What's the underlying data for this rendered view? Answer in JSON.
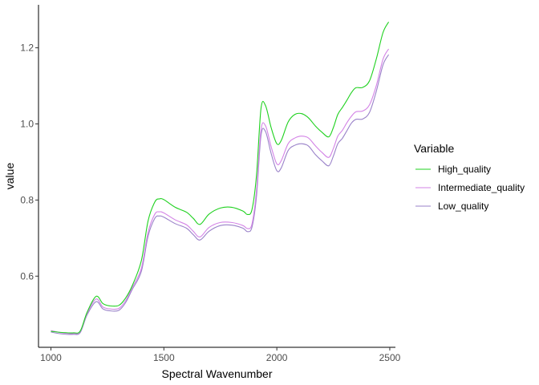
{
  "chart_data": {
    "type": "line",
    "xlabel": "Spectral Wavenumber",
    "ylabel": "value",
    "xlim": [
      945,
      2525
    ],
    "ylim": [
      0.413,
      1.313
    ],
    "x_ticks": [
      1000,
      1500,
      2000,
      2500
    ],
    "y_ticks": [
      0.6,
      0.8,
      1.0,
      1.2
    ],
    "x_tick_labels": [
      "1000",
      "1500",
      "2000",
      "2500"
    ],
    "y_tick_labels": [
      "0.6",
      "0.8",
      "1.0",
      "1.2"
    ],
    "grid": false,
    "legend": {
      "title": "Variable",
      "position": "right"
    },
    "x": [
      1000,
      1050,
      1100,
      1130,
      1160,
      1200,
      1230,
      1260,
      1300,
      1330,
      1360,
      1400,
      1430,
      1460,
      1480,
      1500,
      1550,
      1600,
      1630,
      1660,
      1700,
      1750,
      1800,
      1850,
      1870,
      1890,
      1910,
      1930,
      1950,
      1975,
      2000,
      2020,
      2050,
      2080,
      2110,
      2140,
      2170,
      2200,
      2230,
      2250,
      2270,
      2290,
      2310,
      2330,
      2350,
      2380,
      2410,
      2440,
      2470,
      2495
    ],
    "series": [
      {
        "name": "High_quality",
        "color": "#1fd11f",
        "values": [
          0.455,
          0.452,
          0.451,
          0.456,
          0.505,
          0.547,
          0.528,
          0.522,
          0.523,
          0.542,
          0.575,
          0.64,
          0.745,
          0.795,
          0.803,
          0.801,
          0.781,
          0.768,
          0.752,
          0.736,
          0.763,
          0.779,
          0.781,
          0.771,
          0.762,
          0.775,
          0.865,
          1.041,
          1.048,
          0.99,
          0.948,
          0.957,
          1.005,
          1.025,
          1.027,
          1.016,
          0.995,
          0.978,
          0.966,
          0.99,
          1.025,
          1.043,
          1.062,
          1.082,
          1.095,
          1.096,
          1.113,
          1.17,
          1.24,
          1.268
        ]
      },
      {
        "name": "Intermediate_quality",
        "color": "#d383e6",
        "values": [
          0.457,
          0.451,
          0.449,
          0.455,
          0.502,
          0.54,
          0.519,
          0.514,
          0.515,
          0.535,
          0.57,
          0.62,
          0.715,
          0.763,
          0.769,
          0.766,
          0.748,
          0.735,
          0.718,
          0.703,
          0.728,
          0.741,
          0.741,
          0.733,
          0.725,
          0.737,
          0.825,
          0.985,
          0.995,
          0.94,
          0.895,
          0.904,
          0.948,
          0.963,
          0.968,
          0.963,
          0.943,
          0.925,
          0.912,
          0.935,
          0.968,
          0.983,
          1.003,
          1.02,
          1.032,
          1.034,
          1.05,
          1.1,
          1.17,
          1.197
        ]
      },
      {
        "name": "Low_quality",
        "color": "#9a82c9",
        "values": [
          0.453,
          0.448,
          0.447,
          0.452,
          0.498,
          0.533,
          0.514,
          0.509,
          0.51,
          0.53,
          0.565,
          0.612,
          0.705,
          0.752,
          0.758,
          0.755,
          0.738,
          0.726,
          0.709,
          0.695,
          0.718,
          0.733,
          0.734,
          0.726,
          0.717,
          0.729,
          0.81,
          0.97,
          0.98,
          0.922,
          0.877,
          0.885,
          0.93,
          0.944,
          0.948,
          0.942,
          0.92,
          0.903,
          0.89,
          0.915,
          0.948,
          0.962,
          0.982,
          1.002,
          1.012,
          1.013,
          1.03,
          1.085,
          1.155,
          1.182
        ]
      }
    ]
  }
}
